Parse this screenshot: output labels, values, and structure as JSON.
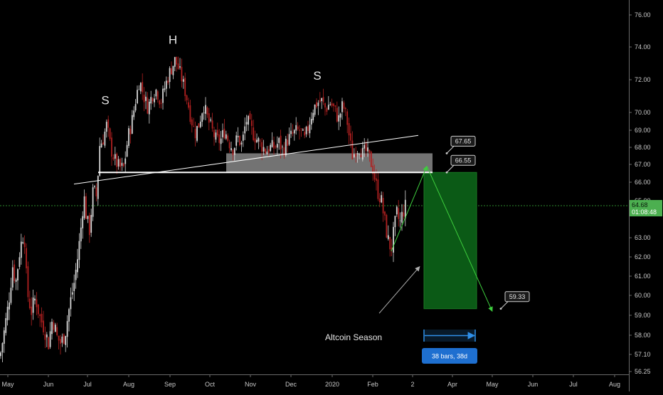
{
  "chart_data": {
    "type": "candlestick",
    "price_axis": {
      "ticks": [
        "76.00",
        "74.00",
        "72.00",
        "70.00",
        "69.00",
        "68.00",
        "67.00",
        "66.00",
        "65.00",
        "63.00",
        "62.00",
        "61.00",
        "60.00",
        "59.00",
        "58.00",
        "57.10",
        "56.25"
      ],
      "current_price": "64.68",
      "countdown": "01:08:48",
      "current_price_color": "#4caf50"
    },
    "time_axis": {
      "ticks": [
        "May",
        "Jun",
        "Jul",
        "Aug",
        "Sep",
        "Oct",
        "Nov",
        "Dec",
        "2020",
        "Feb",
        "2",
        "Apr",
        "May",
        "Jun",
        "Jul",
        "Aug"
      ]
    },
    "series_path": [
      [
        0,
        57.0
      ],
      [
        6,
        58.2
      ],
      [
        12,
        59.6
      ],
      [
        18,
        61.6
      ],
      [
        22,
        60.6
      ],
      [
        28,
        62.4
      ],
      [
        34,
        63.4
      ],
      [
        38,
        60.2
      ],
      [
        44,
        59.2
      ],
      [
        50,
        59.9
      ],
      [
        56,
        58.9
      ],
      [
        62,
        58.4
      ],
      [
        68,
        57.6
      ],
      [
        74,
        58.9
      ],
      [
        80,
        57.9
      ],
      [
        86,
        57.6
      ],
      [
        92,
        58.2
      ],
      [
        98,
        59.5
      ],
      [
        104,
        60.6
      ],
      [
        110,
        62.2
      ],
      [
        114,
        63.6
      ],
      [
        118,
        65.3
      ],
      [
        122,
        63.9
      ],
      [
        126,
        63.4
      ],
      [
        131,
        65.6
      ],
      [
        136,
        65.2
      ],
      [
        140,
        68.1
      ],
      [
        145,
        68.5
      ],
      [
        150,
        69.3
      ],
      [
        156,
        67.9
      ],
      [
        162,
        67.2
      ],
      [
        168,
        66.8
      ],
      [
        174,
        66.8
      ],
      [
        180,
        68.6
      ],
      [
        186,
        69.6
      ],
      [
        190,
        70.6
      ],
      [
        196,
        72.0
      ],
      [
        202,
        71.0
      ],
      [
        208,
        70.3
      ],
      [
        214,
        71.1
      ],
      [
        220,
        71.4
      ],
      [
        226,
        70.6
      ],
      [
        232,
        71.6
      ],
      [
        238,
        72.4
      ],
      [
        242,
        72.8
      ],
      [
        246,
        73.2
      ],
      [
        250,
        72.8
      ],
      [
        256,
        72.0
      ],
      [
        262,
        71.0
      ],
      [
        268,
        69.8
      ],
      [
        274,
        68.8
      ],
      [
        280,
        69.4
      ],
      [
        286,
        70.5
      ],
      [
        292,
        69.6
      ],
      [
        298,
        69.0
      ],
      [
        304,
        68.4
      ],
      [
        310,
        68.4
      ],
      [
        316,
        69.0
      ],
      [
        322,
        68.3
      ],
      [
        328,
        67.9
      ],
      [
        334,
        68.6
      ],
      [
        340,
        68.1
      ],
      [
        346,
        69.6
      ],
      [
        350,
        69.3
      ],
      [
        356,
        68.8
      ],
      [
        362,
        68.4
      ],
      [
        368,
        68.1
      ],
      [
        374,
        67.8
      ],
      [
        380,
        68.0
      ],
      [
        386,
        68.0
      ],
      [
        392,
        68.3
      ],
      [
        398,
        67.8
      ],
      [
        404,
        68.4
      ],
      [
        410,
        68.7
      ],
      [
        416,
        68.9
      ],
      [
        422,
        69.0
      ],
      [
        428,
        68.4
      ],
      [
        434,
        69.3
      ],
      [
        440,
        70.2
      ],
      [
        446,
        70.6
      ],
      [
        452,
        70.7
      ],
      [
        458,
        70.2
      ],
      [
        464,
        70.6
      ],
      [
        470,
        70.2
      ],
      [
        476,
        69.6
      ],
      [
        482,
        70.5
      ],
      [
        488,
        69.5
      ],
      [
        492,
        68.3
      ],
      [
        496,
        67.4
      ],
      [
        500,
        67.9
      ],
      [
        506,
        68.0
      ],
      [
        510,
        67.6
      ],
      [
        514,
        67.8
      ],
      [
        520,
        67.3
      ],
      [
        524,
        66.8
      ],
      [
        530,
        65.6
      ],
      [
        536,
        65.0
      ],
      [
        540,
        64.0
      ],
      [
        546,
        62.8
      ],
      [
        550,
        62.4
      ],
      [
        554,
        63.4
      ],
      [
        558,
        64.3
      ],
      [
        562,
        63.7
      ],
      [
        566,
        64.3
      ],
      [
        570,
        64.7
      ]
    ],
    "neckline_horizontal": {
      "price": 66.55,
      "from_bar": 138,
      "to_bar": 608
    },
    "neckline_sloped": {
      "from": [
        104,
        65.9
      ],
      "to": [
        588,
        68.7
      ]
    },
    "resistance_zone": {
      "top": 67.65,
      "bottom": 66.55,
      "from_bar": 318,
      "to_bar": 608
    },
    "target_zone": {
      "top": 66.55,
      "bottom": 59.33,
      "from_bar": 596,
      "to_bar": 670
    },
    "projection": [
      [
        550,
        62.3
      ],
      [
        600,
        66.9
      ],
      [
        692,
        59.2
      ]
    ],
    "callouts": [
      {
        "label": "67.65",
        "price": 67.65,
        "bar": 628
      },
      {
        "label": "66.55",
        "price": 66.55,
        "bar": 628
      },
      {
        "label": "59.33",
        "price": 59.33,
        "bar": 704
      }
    ],
    "pattern_labels": [
      {
        "text": "S",
        "bar": 148,
        "price": 70.5
      },
      {
        "text": "H",
        "bar": 243,
        "price": 74.2
      },
      {
        "text": "S",
        "bar": 446,
        "price": 72.0
      }
    ],
    "annotation": {
      "text": "Altcoin Season",
      "arrow_from": [
        533,
        59.1
      ],
      "arrow_to": [
        590,
        61.5
      ]
    },
    "range_measure": {
      "label": "38 bars, 38d",
      "from_bar": 596,
      "to_bar": 668
    }
  }
}
